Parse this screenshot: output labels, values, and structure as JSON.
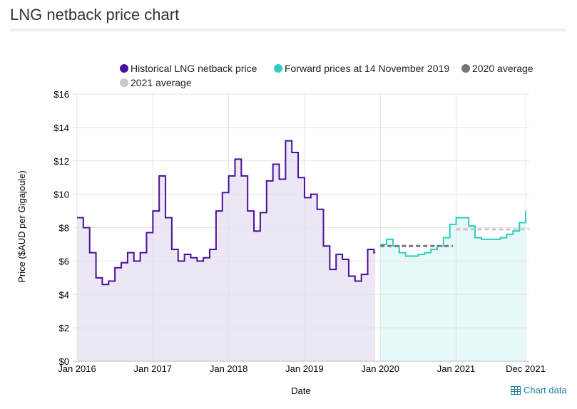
{
  "page": {
    "title": "LNG netback price chart"
  },
  "footer": {
    "chart_data_link": "Chart data",
    "icon": "table-icon"
  },
  "chart_data": {
    "type": "line",
    "title": "",
    "xlabel": "Date",
    "ylabel": "Price ($AUD per Gigajoule)",
    "ylim": [
      0,
      16
    ],
    "yticks": [
      "$0",
      "$2",
      "$4",
      "$6",
      "$8",
      "$10",
      "$12",
      "$14",
      "$16"
    ],
    "xticks": [
      "Jan 2016",
      "Jan 2017",
      "Jan 2018",
      "Jan 2019",
      "Jan 2020",
      "Jan 2021",
      "Dec 2021"
    ],
    "grid": true,
    "legend_position": "top",
    "step": true,
    "series": [
      {
        "name": "Historical LNG netback price",
        "color": "#4b0f9e",
        "fill": "#ece6f5",
        "x": [
          "2016-01",
          "2016-02",
          "2016-03",
          "2016-04",
          "2016-05",
          "2016-06",
          "2016-07",
          "2016-08",
          "2016-09",
          "2016-10",
          "2016-11",
          "2016-12",
          "2017-01",
          "2017-02",
          "2017-03",
          "2017-04",
          "2017-05",
          "2017-06",
          "2017-07",
          "2017-08",
          "2017-09",
          "2017-10",
          "2017-11",
          "2017-12",
          "2018-01",
          "2018-02",
          "2018-03",
          "2018-04",
          "2018-05",
          "2018-06",
          "2018-07",
          "2018-08",
          "2018-09",
          "2018-10",
          "2018-11",
          "2018-12",
          "2019-01",
          "2019-02",
          "2019-03",
          "2019-04",
          "2019-05",
          "2019-06",
          "2019-07",
          "2019-08",
          "2019-09",
          "2019-10",
          "2019-11",
          "2019-12"
        ],
        "values": [
          8.6,
          8.0,
          6.5,
          5.0,
          4.6,
          4.8,
          5.6,
          5.9,
          6.5,
          6.0,
          6.5,
          7.7,
          9.0,
          11.1,
          8.6,
          6.7,
          6.0,
          6.4,
          6.2,
          6.0,
          6.2,
          6.7,
          9.0,
          10.1,
          11.1,
          12.1,
          11.1,
          9.0,
          7.8,
          8.9,
          10.8,
          11.8,
          10.9,
          13.2,
          12.5,
          11.0,
          9.8,
          10.0,
          9.1,
          6.9,
          5.5,
          6.4,
          6.1,
          5.1,
          4.8,
          5.2,
          6.7,
          6.5
        ]
      },
      {
        "name": "Forward prices at 14 November 2019",
        "color": "#2ccdc0",
        "fill": "#e6f8f7",
        "x": [
          "2020-01",
          "2020-02",
          "2020-03",
          "2020-04",
          "2020-05",
          "2020-06",
          "2020-07",
          "2020-08",
          "2020-09",
          "2020-10",
          "2020-11",
          "2020-12",
          "2021-01",
          "2021-02",
          "2021-03",
          "2021-04",
          "2021-05",
          "2021-06",
          "2021-07",
          "2021-08",
          "2021-09",
          "2021-10",
          "2021-11",
          "2021-12"
        ],
        "values": [
          7.0,
          7.3,
          6.9,
          6.5,
          6.3,
          6.3,
          6.4,
          6.5,
          6.7,
          6.9,
          7.4,
          8.2,
          8.6,
          8.6,
          8.1,
          7.4,
          7.3,
          7.3,
          7.3,
          7.4,
          7.6,
          7.8,
          8.3,
          9.0
        ]
      },
      {
        "name": "2020 average",
        "color": "#777777",
        "dashed": true,
        "x": [
          "2020-01",
          "2020-12"
        ],
        "values": [
          6.9,
          6.9
        ]
      },
      {
        "name": "2021 average",
        "color": "#c8c8c8",
        "dashed": true,
        "x": [
          "2021-01",
          "2021-12"
        ],
        "values": [
          7.9,
          7.9
        ]
      }
    ]
  }
}
